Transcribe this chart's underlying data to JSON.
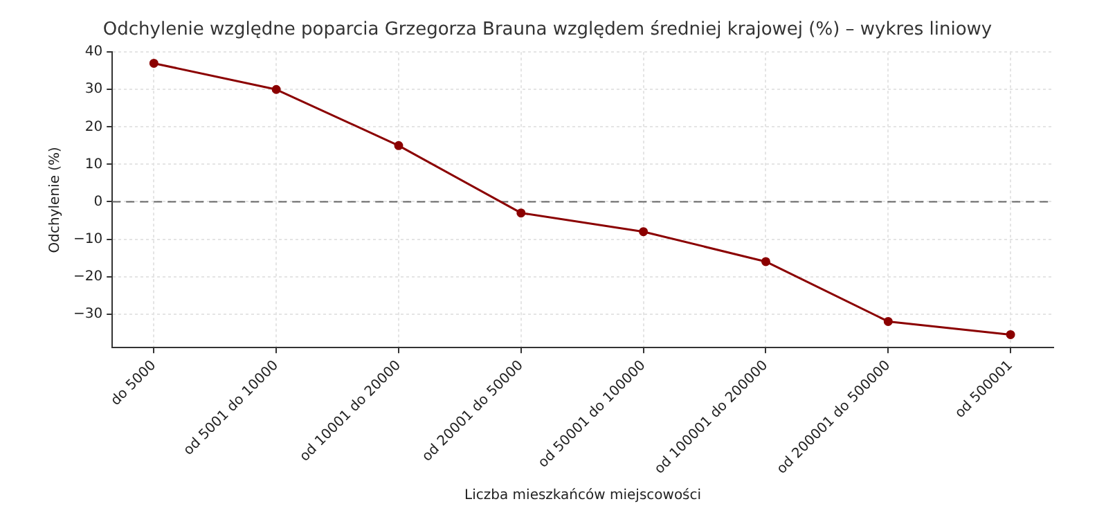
{
  "chart_data": {
    "type": "line",
    "title": "Odchylenie względne poparcia Grzegorza Brauna względem średniej krajowej (%) – wykres liniowy",
    "xlabel": "Liczba mieszkańców miejscowości",
    "ylabel": "Odchylenie (%)",
    "categories": [
      "do 5000",
      "od 5001 do 10000",
      "od 10001 do 20000",
      "od 20001 do 50000",
      "od 50001 do 100000",
      "od 100001 do 200000",
      "od 200001 do 500000",
      "od 500001"
    ],
    "series": [
      {
        "color": "#8b0000",
        "values": [
          37,
          30,
          15,
          -3,
          -8,
          -16,
          -32,
          -35.5
        ]
      }
    ],
    "ylim": [
      -39,
      40
    ],
    "yticks": [
      -30,
      -20,
      -10,
      0,
      10,
      20,
      30,
      40
    ],
    "grid": true,
    "marker": "circle",
    "line_style": "solid",
    "ref_lines": [
      {
        "axis": "y",
        "value": 0,
        "color": "#666666",
        "line_style": "dashed"
      }
    ]
  }
}
